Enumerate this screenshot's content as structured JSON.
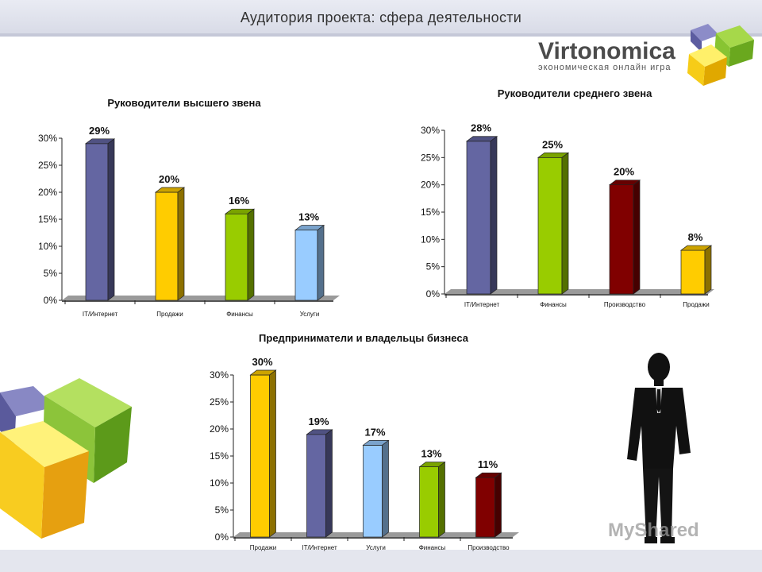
{
  "slide_title": "Аудитория проекта: сфера деятельности",
  "logo": {
    "name": "Virtonomica",
    "tagline": "экономическая онлайн игра"
  },
  "watermark": "MyShared",
  "colors": {
    "slate": "#6466a2",
    "yellow": "#ffcc00",
    "green": "#99cc00",
    "lightblue": "#99ccff",
    "maroon": "#800000"
  },
  "chart_data": [
    {
      "type": "bar",
      "title": "Руководители высшего звена",
      "categories": [
        "IT/Интернет",
        "Продажи",
        "Финансы",
        "Услуги"
      ],
      "values": [
        29,
        20,
        16,
        13
      ],
      "labels": [
        "29%",
        "20%",
        "16%",
        "13%"
      ],
      "colors": [
        "#6466a2",
        "#ffcc00",
        "#99cc00",
        "#99ccff"
      ],
      "yticks": [
        "0%",
        "5%",
        "10%",
        "15%",
        "20%",
        "25%",
        "30%"
      ],
      "ylim": [
        0,
        30
      ]
    },
    {
      "type": "bar",
      "title": "Руководители среднего звена",
      "categories": [
        "IT/Интернет",
        "Финансы",
        "Производство",
        "Продажи"
      ],
      "values": [
        28,
        25,
        20,
        8
      ],
      "labels": [
        "28%",
        "25%",
        "20%",
        "8%"
      ],
      "colors": [
        "#6466a2",
        "#99cc00",
        "#800000",
        "#ffcc00"
      ],
      "yticks": [
        "0%",
        "5%",
        "10%",
        "15%",
        "20%",
        "25%",
        "30%"
      ],
      "ylim": [
        0,
        30
      ]
    },
    {
      "type": "bar",
      "title": "Предприниматели и владельцы бизнеса",
      "categories": [
        "Продажи",
        "IT/Интернет",
        "Услуги",
        "Финансы",
        "Производство"
      ],
      "values": [
        30,
        19,
        17,
        13,
        11
      ],
      "labels": [
        "30%",
        "19%",
        "17%",
        "13%",
        "11%"
      ],
      "colors": [
        "#ffcc00",
        "#6466a2",
        "#99ccff",
        "#99cc00",
        "#800000"
      ],
      "yticks": [
        "0%",
        "5%",
        "10%",
        "15%",
        "20%",
        "25%",
        "30%"
      ],
      "ylim": [
        0,
        30
      ]
    }
  ]
}
